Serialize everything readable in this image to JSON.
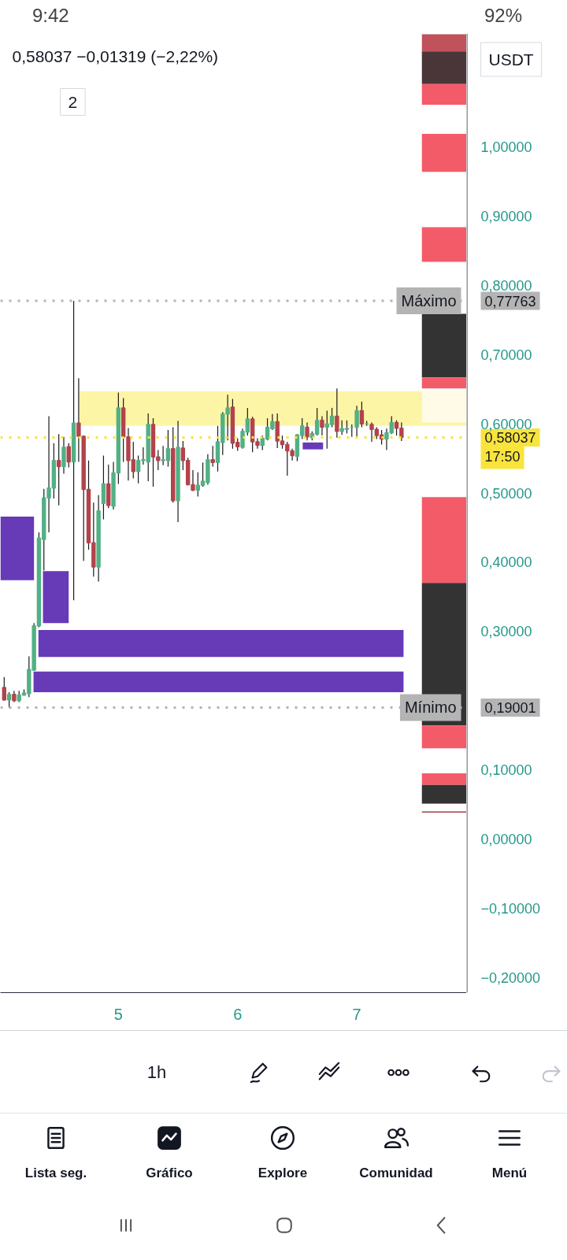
{
  "chart_data": {
    "type": "candlestick",
    "title": "0,58037 −0,01319 (−2,22%)",
    "x": [
      4.0417,
      4.0833,
      4.125,
      4.1667,
      4.2083,
      4.25,
      4.2917,
      4.3333,
      4.375,
      4.4167,
      4.4583,
      4.5,
      4.5417,
      4.5833,
      4.625,
      4.6667,
      4.7083,
      4.75,
      4.7917,
      4.8333,
      4.875,
      4.9167,
      4.9583,
      5,
      5.0417,
      5.0833,
      5.125,
      5.1667,
      5.2083,
      5.25,
      5.2917,
      5.3333,
      5.375,
      5.4167,
      5.4583,
      5.5,
      5.5417,
      5.5833,
      5.625,
      5.6667,
      5.7083,
      5.75,
      5.7917,
      5.8333,
      5.875,
      5.9167,
      5.9583,
      6,
      6.0417,
      6.0833,
      6.125,
      6.1667,
      6.2083,
      6.25,
      6.2917,
      6.3333,
      6.375,
      6.4167,
      6.4583,
      6.5,
      6.5417,
      6.5833,
      6.625,
      6.6667,
      6.7083,
      6.75,
      6.7917,
      6.8333,
      6.875,
      6.9167,
      6.9583,
      7,
      7.0417,
      7.0833,
      7.125,
      7.1667,
      7.2083,
      7.25,
      7.2917,
      7.3333,
      7.375
    ],
    "ohlc": [
      [
        0.219,
        0.234,
        0.2,
        0.201
      ],
      [
        0.201,
        0.212,
        0.19001,
        0.209
      ],
      [
        0.209,
        0.214,
        0.198,
        0.2
      ],
      [
        0.2,
        0.214,
        0.198,
        0.208
      ],
      [
        0.208,
        0.216,
        0.207,
        0.211
      ],
      [
        0.21,
        0.264,
        0.205,
        0.245
      ],
      [
        0.244,
        0.312,
        0.243,
        0.308
      ],
      [
        0.308,
        0.443,
        0.306,
        0.435
      ],
      [
        0.433,
        0.506,
        0.388,
        0.493
      ],
      [
        0.493,
        0.611,
        0.443,
        0.507
      ],
      [
        0.507,
        0.572,
        0.492,
        0.547
      ],
      [
        0.547,
        0.585,
        0.482,
        0.538
      ],
      [
        0.538,
        0.581,
        0.528,
        0.566
      ],
      [
        0.567,
        0.572,
        0.537,
        0.545
      ],
      [
        0.545,
        0.77763,
        0.345,
        0.601
      ],
      [
        0.601,
        0.666,
        0.545,
        0.582
      ],
      [
        0.582,
        0.583,
        0.402,
        0.505
      ],
      [
        0.505,
        0.547,
        0.418,
        0.428
      ],
      [
        0.428,
        0.486,
        0.379,
        0.393
      ],
      [
        0.393,
        0.497,
        0.372,
        0.474
      ],
      [
        0.485,
        0.554,
        0.462,
        0.513
      ],
      [
        0.513,
        0.541,
        0.478,
        0.482
      ],
      [
        0.481,
        0.545,
        0.476,
        0.529
      ],
      [
        0.529,
        0.645,
        0.513,
        0.623
      ],
      [
        0.623,
        0.637,
        0.545,
        0.581
      ],
      [
        0.581,
        0.594,
        0.518,
        0.547
      ],
      [
        0.548,
        0.574,
        0.521,
        0.531
      ],
      [
        0.531,
        0.554,
        0.514,
        0.547
      ],
      [
        0.547,
        0.566,
        0.541,
        0.548
      ],
      [
        0.545,
        0.615,
        0.517,
        0.599
      ],
      [
        0.599,
        0.608,
        0.509,
        0.552
      ],
      [
        0.552,
        0.562,
        0.533,
        0.547
      ],
      [
        0.547,
        0.568,
        0.54,
        0.548
      ],
      [
        0.547,
        0.591,
        0.538,
        0.564
      ],
      [
        0.564,
        0.595,
        0.486,
        0.489
      ],
      [
        0.489,
        0.604,
        0.458,
        0.566
      ],
      [
        0.565,
        0.575,
        0.533,
        0.547
      ],
      [
        0.547,
        0.551,
        0.511,
        0.512
      ],
      [
        0.512,
        0.533,
        0.503,
        0.504
      ],
      [
        0.504,
        0.53,
        0.495,
        0.511
      ],
      [
        0.511,
        0.544,
        0.509,
        0.517
      ],
      [
        0.515,
        0.556,
        0.512,
        0.548
      ],
      [
        0.548,
        0.568,
        0.538,
        0.544
      ],
      [
        0.544,
        0.597,
        0.531,
        0.574
      ],
      [
        0.573,
        0.617,
        0.555,
        0.614
      ],
      [
        0.614,
        0.642,
        0.576,
        0.623
      ],
      [
        0.624,
        0.636,
        0.564,
        0.572
      ],
      [
        0.573,
        0.579,
        0.561,
        0.567
      ],
      [
        0.566,
        0.593,
        0.564,
        0.589
      ],
      [
        0.588,
        0.623,
        0.583,
        0.607
      ],
      [
        0.607,
        0.61,
        0.559,
        0.574
      ],
      [
        0.574,
        0.579,
        0.564,
        0.569
      ],
      [
        0.569,
        0.583,
        0.562,
        0.579
      ],
      [
        0.578,
        0.608,
        0.576,
        0.595
      ],
      [
        0.593,
        0.614,
        0.591,
        0.603
      ],
      [
        0.603,
        0.615,
        0.565,
        0.575
      ],
      [
        0.575,
        0.583,
        0.564,
        0.57
      ],
      [
        0.57,
        0.574,
        0.525,
        0.561
      ],
      [
        0.561,
        0.564,
        0.547,
        0.554
      ],
      [
        0.553,
        0.585,
        0.546,
        0.584
      ],
      [
        0.583,
        0.608,
        0.578,
        0.597
      ],
      [
        0.595,
        0.602,
        0.576,
        0.581
      ],
      [
        0.58,
        0.589,
        0.576,
        0.586
      ],
      [
        0.585,
        0.623,
        0.583,
        0.605
      ],
      [
        0.605,
        0.611,
        0.583,
        0.595
      ],
      [
        0.595,
        0.619,
        0.564,
        0.6
      ],
      [
        0.599,
        0.623,
        0.595,
        0.611
      ],
      [
        0.611,
        0.651,
        0.58,
        0.589
      ],
      [
        0.589,
        0.605,
        0.584,
        0.593
      ],
      [
        0.592,
        0.605,
        0.586,
        0.593
      ],
      [
        0.595,
        0.599,
        0.581,
        0.595
      ],
      [
        0.595,
        0.626,
        0.581,
        0.619
      ],
      [
        0.619,
        0.632,
        0.595,
        0.6
      ],
      [
        0.6,
        0.604,
        0.597,
        0.6
      ],
      [
        0.599,
        0.602,
        0.574,
        0.592
      ],
      [
        0.592,
        0.595,
        0.578,
        0.583
      ],
      [
        0.584,
        0.591,
        0.57,
        0.578
      ],
      [
        0.578,
        0.593,
        0.562,
        0.587
      ],
      [
        0.587,
        0.611,
        0.585,
        0.602
      ],
      [
        0.602,
        0.605,
        0.583,
        0.59356
      ],
      [
        0.59356,
        0.602,
        0.575,
        0.58037
      ]
    ],
    "colors": [
      "#b3434b",
      "#52b085",
      "#b3434b",
      "#52b085",
      "#52b085",
      "#52b085",
      "#52b085",
      "#52b085",
      "#52b085",
      "#52b085",
      "#52b085",
      "#b3434b",
      "#52b085",
      "#b3434b",
      "#52b085",
      "#b3434b",
      "#b3434b",
      "#b3434b",
      "#b3434b",
      "#52b085",
      "#52b085",
      "#b3434b",
      "#52b085",
      "#52b085",
      "#b3434b",
      "#b3434b",
      "#b3434b",
      "#52b085",
      "#52b085",
      "#52b085",
      "#b3434b",
      "#b3434b",
      "#52b085",
      "#52b085",
      "#b3434b",
      "#52b085",
      "#b3434b",
      "#b3434b",
      "#b3434b",
      "#52b085",
      "#52b085",
      "#52b085",
      "#b3434b",
      "#52b085",
      "#52b085",
      "#52b085",
      "#b3434b",
      "#b3434b",
      "#52b085",
      "#52b085",
      "#b3434b",
      "#b3434b",
      "#52b085",
      "#52b085",
      "#52b085",
      "#b3434b",
      "#b3434b",
      "#b3434b",
      "#b3434b",
      "#52b085",
      "#52b085",
      "#b3434b",
      "#52b085",
      "#52b085",
      "#b3434b",
      "#52b085",
      "#52b085",
      "#b3434b",
      "#52b085",
      "#52b085",
      "#52b085",
      "#52b085",
      "#b3434b",
      "#52b085",
      "#b3434b",
      "#b3434b",
      "#b3434b",
      "#52b085",
      "#52b085",
      "#b3434b",
      "#b3434b"
    ],
    "series": [
      {
        "type": "area",
        "x": [
          4.671,
          7.921
        ],
        "values": [
          null,
          null
        ],
        "upper": [
          0.647,
          0.647
        ],
        "lower": [
          0.597,
          0.597
        ],
        "color": "#fdf5a6"
      },
      {
        "type": "area",
        "x": [
          4.01,
          4.292
        ],
        "values": [
          null,
          null
        ],
        "upper": [
          0.466,
          0.466
        ],
        "lower": [
          0.374,
          0.374
        ],
        "color": "#673ab7"
      },
      {
        "type": "area",
        "x": [
          4.367,
          4.583
        ],
        "values": [
          null,
          null
        ],
        "upper": [
          0.387,
          0.387
        ],
        "lower": [
          0.312,
          0.312
        ],
        "color": "#673ab7"
      },
      {
        "type": "area",
        "x": [
          4.329,
          7.392
        ],
        "values": [
          null,
          null
        ],
        "upper": [
          0.302,
          0.302
        ],
        "lower": [
          0.263,
          0.263
        ],
        "color": "#673ab7"
      },
      {
        "type": "area",
        "x": [
          4.288,
          7.392
        ],
        "values": [
          null,
          null
        ],
        "upper": [
          0.242,
          0.242
        ],
        "lower": [
          0.212,
          0.212
        ],
        "color": "#673ab7"
      },
      {
        "type": "area",
        "x": [
          6.546,
          6.717
        ],
        "values": [
          null,
          null
        ],
        "upper": [
          0.573,
          0.573
        ],
        "lower": [
          0.563,
          0.563
        ],
        "color": "#673ab7"
      },
      {
        "type": "bar",
        "x": [
          7.7335
        ],
        "base": [
          1.138
        ],
        "values": [
          0.025
        ],
        "color": "#c0525c"
      },
      {
        "type": "bar",
        "x": [
          7.7335
        ],
        "base": [
          1.091
        ],
        "values": [
          0.047
        ],
        "color": "#4a3638"
      },
      {
        "type": "bar",
        "x": [
          7.7335
        ],
        "base": [
          1.061
        ],
        "values": [
          0.03
        ],
        "color": "#f45b69"
      },
      {
        "type": "bar",
        "x": [
          7.7335
        ],
        "base": [
          0.964
        ],
        "values": [
          0.055
        ],
        "color": "#f45b69"
      },
      {
        "type": "bar",
        "x": [
          7.7335
        ],
        "base": [
          0.834
        ],
        "values": [
          0.05
        ],
        "color": "#f45b69"
      },
      {
        "type": "bar",
        "x": [
          7.7335
        ],
        "base": [
          0.667
        ],
        "values": [
          0.092
        ],
        "color": "#333333"
      },
      {
        "type": "bar",
        "x": [
          7.7335
        ],
        "base": [
          0.651
        ],
        "values": [
          0.016
        ],
        "color": "#f45b69"
      },
      {
        "type": "bar",
        "x": [
          7.7335
        ],
        "base": [
          0.602
        ],
        "values": [
          0.045
        ],
        "color": "#fffbe6"
      },
      {
        "type": "bar",
        "x": [
          7.7335
        ],
        "base": [
          0.37
        ],
        "values": [
          0.124
        ],
        "color": "#f45b69"
      },
      {
        "type": "bar",
        "x": [
          7.7335
        ],
        "base": [
          0.164
        ],
        "values": [
          0.206
        ],
        "color": "#333333"
      },
      {
        "type": "bar",
        "x": [
          7.7335
        ],
        "base": [
          0.131
        ],
        "values": [
          0.033
        ],
        "color": "#f45b69"
      },
      {
        "type": "bar",
        "x": [
          7.7335
        ],
        "base": [
          0.078
        ],
        "values": [
          0.017
        ],
        "color": "#f45b69"
      },
      {
        "type": "bar",
        "x": [
          7.7335
        ],
        "base": [
          0.051
        ],
        "values": [
          0.027
        ],
        "color": "#333333"
      },
      {
        "type": "bar",
        "x": [
          7.7335
        ],
        "base": [
          0.038
        ],
        "values": [
          0.002
        ],
        "color": "#b05a64"
      }
    ],
    "xlim": [
      4.01,
      7.921
    ],
    "xticks": [
      5,
      6,
      7
    ],
    "ylim": [
      -0.222,
      1.164
    ],
    "yticks": [
      {
        "value": 1.0,
        "label": "1,00000"
      },
      {
        "value": 0.9,
        "label": "0,90000"
      },
      {
        "value": 0.8,
        "label": "0,80000"
      },
      {
        "value": 0.7,
        "label": "0,70000"
      },
      {
        "value": 0.6,
        "label": "0,60000"
      },
      {
        "value": 0.5,
        "label": "0,50000"
      },
      {
        "value": 0.4,
        "label": "0,40000"
      },
      {
        "value": 0.3,
        "label": "0,30000"
      },
      {
        "value": 0.1,
        "label": "0,10000"
      },
      {
        "value": 0.0,
        "label": "0,00000"
      },
      {
        "value": -0.1,
        "label": "−0,10000"
      },
      {
        "value": -0.2,
        "label": "−0,20000"
      },
      {
        "value": 0.77763,
        "label": "0,77763"
      },
      {
        "value": 0.58037,
        "label": "0,58037"
      },
      {
        "value": 0.19001,
        "label": "0,19001"
      }
    ],
    "ref_lines": [
      {
        "axis": "y",
        "value": 0.77763,
        "label": "Máximo",
        "color": "#b4b4b4",
        "line_style": "dotted"
      },
      {
        "axis": "y",
        "value": 0.19001,
        "label": "Mínimo",
        "color": "#b4b4b4",
        "line_style": "dotted"
      },
      {
        "axis": "y",
        "value": 0.58037,
        "color": "#f8e43c",
        "line_style": "dotted"
      }
    ],
    "annotations": [
      "17:50",
      "2",
      "USDT",
      "9:42",
      "92%",
      "1h",
      "Lista seg.",
      "Gráfico",
      "Explore",
      "Comunidad",
      "Menú"
    ],
    "grid": false
  }
}
